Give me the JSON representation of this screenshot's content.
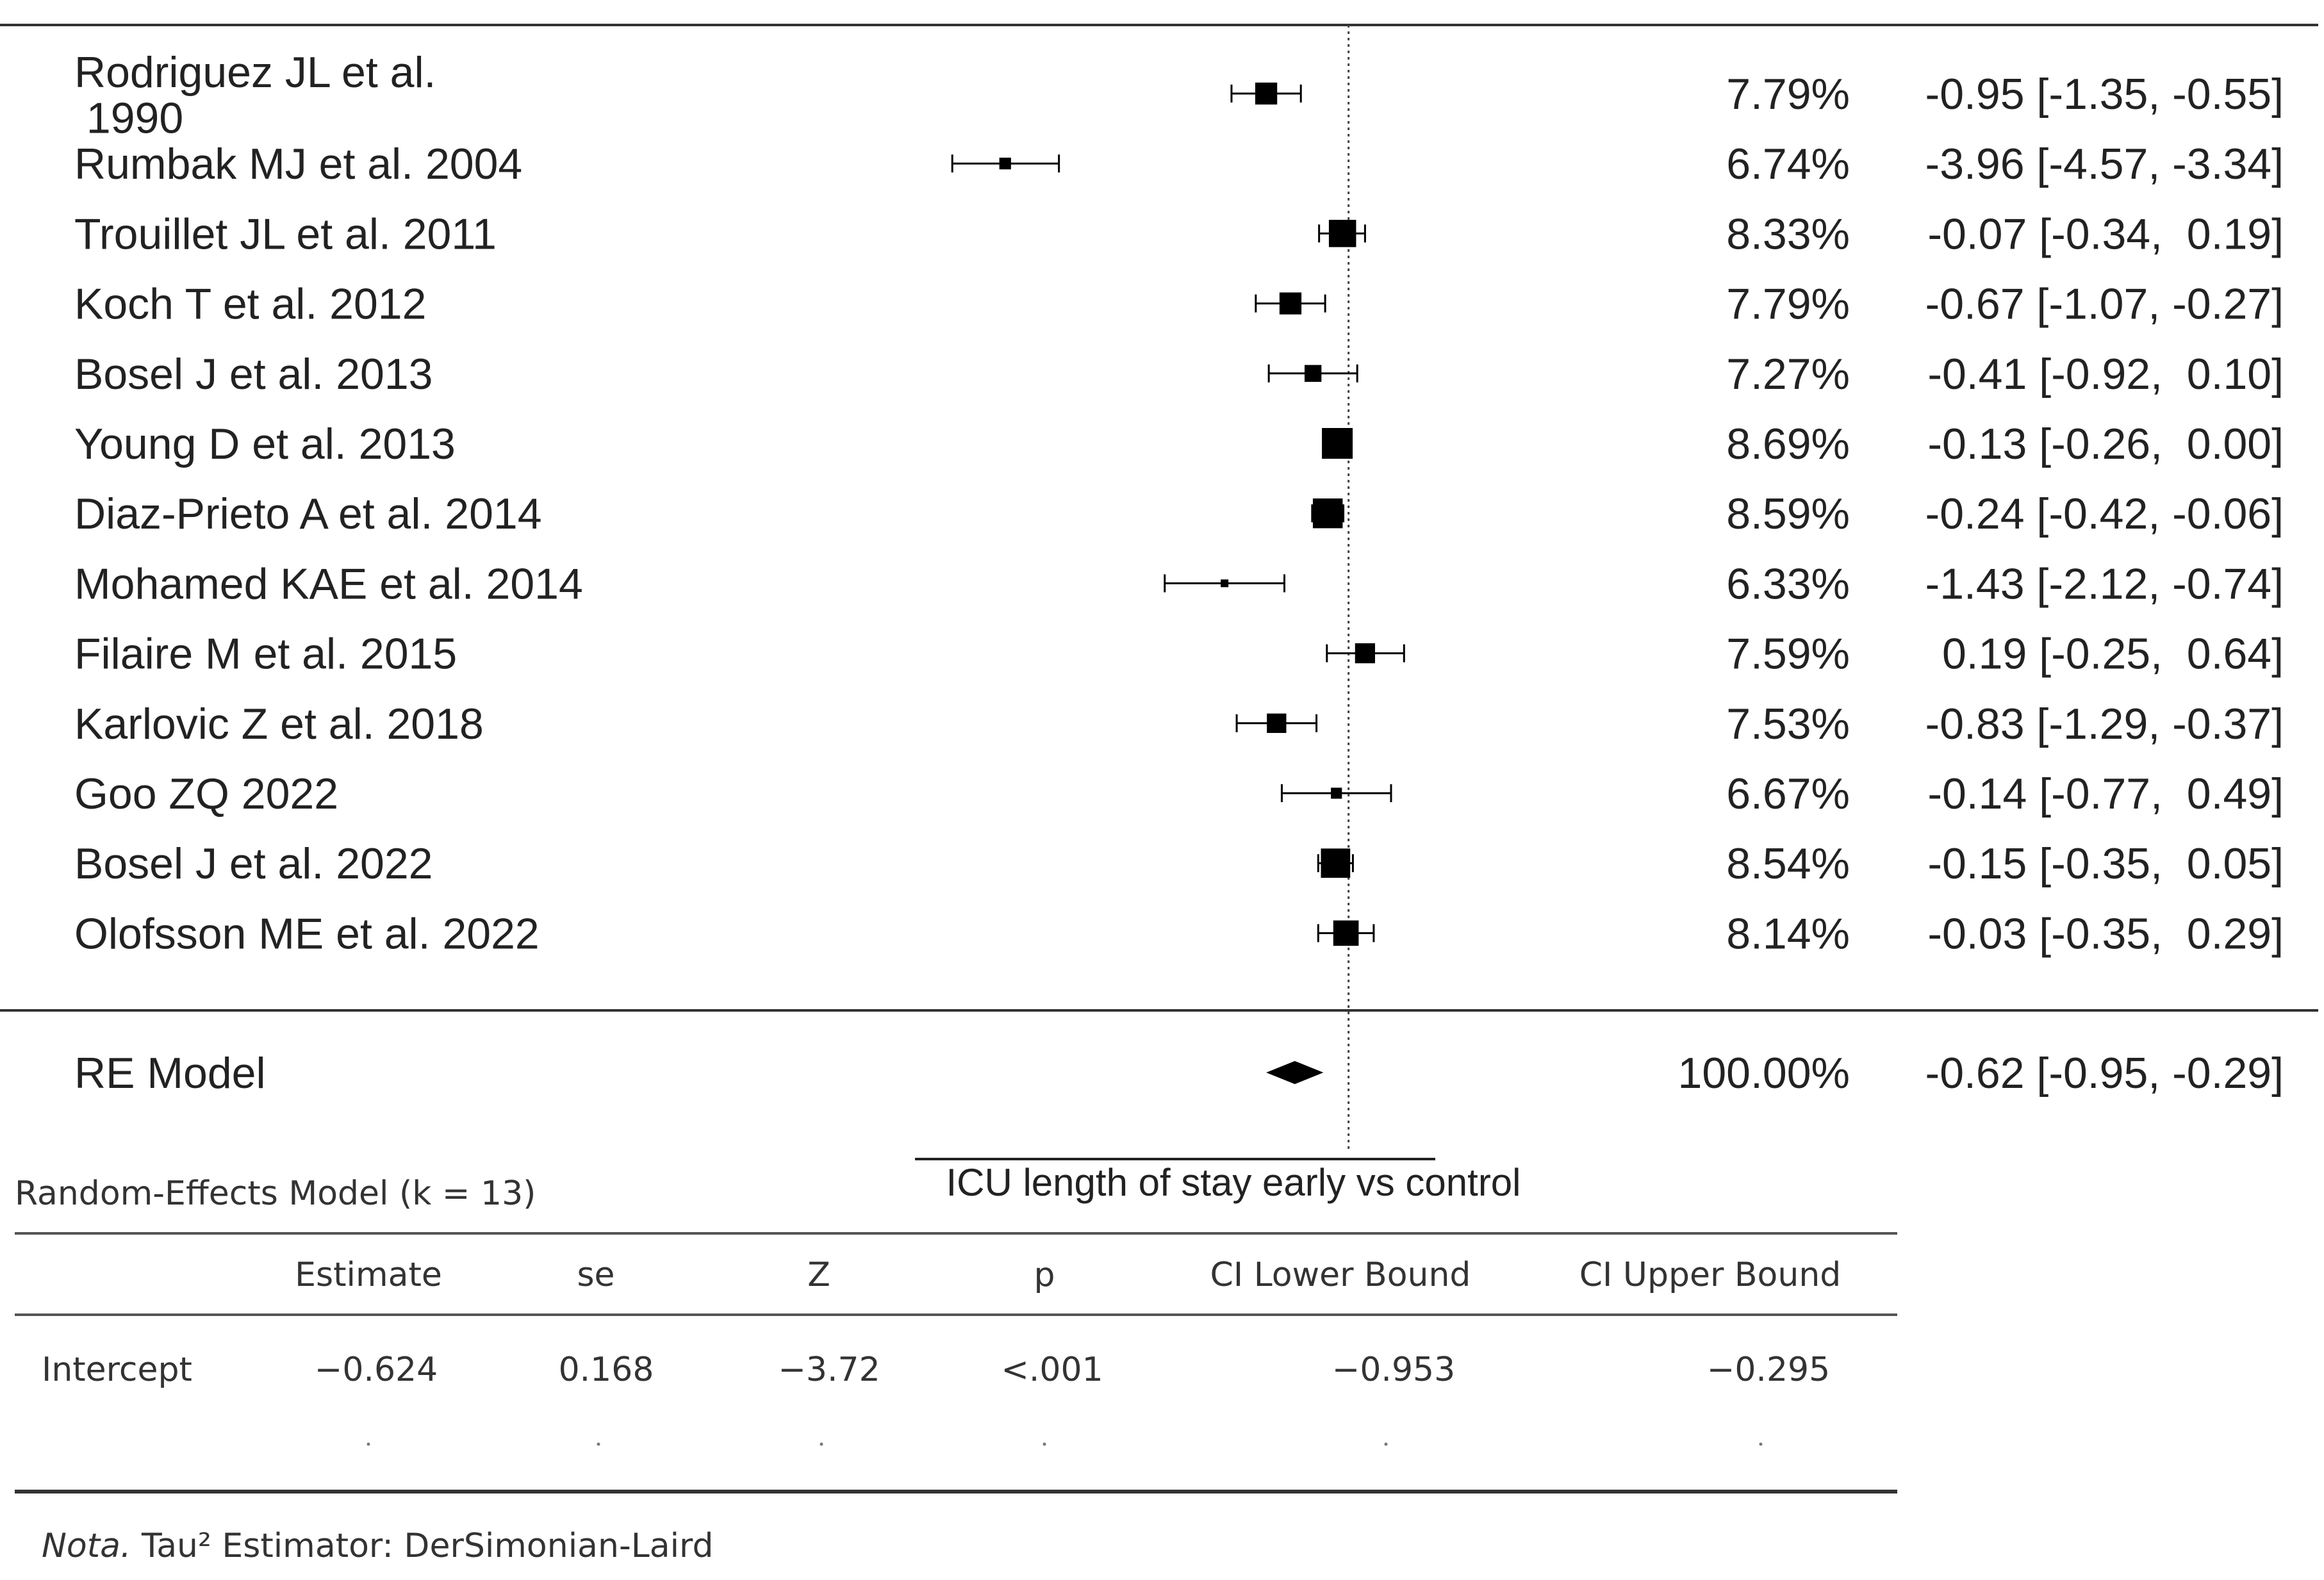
{
  "chart_data": {
    "type": "forest",
    "xlabel": "ICU length of stay early vs control",
    "xlim": [
      -5,
      1
    ],
    "reference_line": 0,
    "color": "#000000",
    "categories": [
      "Rodriguez JL et al.\n 1990",
      "Rumbak MJ et al. 2004",
      "Trouillet JL et al. 2011",
      "Koch T et al. 2012",
      "Bosel J et al. 2013",
      "Young D et al. 2013",
      "Diaz-Prieto A et al. 2014",
      "Mohamed KAE et al. 2014",
      "Filaire M et al. 2015",
      "Karlovic Z et al. 2018",
      "Goo ZQ 2022",
      "Bosel J et al. 2022",
      "Olofsson ME et al. 2022"
    ],
    "values": [
      -0.95,
      -3.96,
      -0.07,
      -0.67,
      -0.41,
      -0.13,
      -0.24,
      -1.43,
      0.19,
      -0.83,
      -0.14,
      -0.15,
      -0.03
    ],
    "ci_low": [
      -1.35,
      -4.57,
      -0.34,
      -1.07,
      -0.92,
      -0.26,
      -0.42,
      -2.12,
      -0.25,
      -1.29,
      -0.77,
      -0.35,
      -0.35
    ],
    "ci_high": [
      -0.55,
      -3.34,
      0.19,
      -0.27,
      0.1,
      0.0,
      -0.06,
      -0.74,
      0.64,
      -0.37,
      0.49,
      0.05,
      0.29
    ],
    "value_labels": [
      "-0.95 [-1.35, -0.55]",
      "-3.96 [-4.57, -3.34]",
      "-0.07 [-0.34,  0.19]",
      "-0.67 [-1.07, -0.27]",
      "-0.41 [-0.92,  0.10]",
      "-0.13 [-0.26,  0.00]",
      "-0.24 [-0.42, -0.06]",
      "-1.43 [-2.12, -0.74]",
      " 0.19 [-0.25,  0.64]",
      "-0.83 [-1.29, -0.37]",
      "-0.14 [-0.77,  0.49]",
      "-0.15 [-0.35,  0.05]",
      "-0.03 [-0.35,  0.29]"
    ],
    "weights": [
      7.79,
      6.74,
      8.33,
      7.79,
      7.27,
      8.69,
      8.59,
      6.33,
      7.59,
      7.53,
      6.67,
      8.54,
      8.14
    ],
    "weight_labels": [
      "7.79%",
      "6.74%",
      "8.33%",
      "7.79%",
      "7.27%",
      "8.69%",
      "8.59%",
      "6.33%",
      "7.59%",
      "7.53%",
      "6.67%",
      "8.54%",
      "8.14%"
    ],
    "pooled": {
      "name": "RE Model",
      "value": -0.62,
      "ci_low": -0.95,
      "ci_high": -0.29,
      "weight": 100.0,
      "weight_label": "100.00%",
      "value_label": "-0.62 [-0.95, -0.29]"
    }
  },
  "table": {
    "title": "Random-Effects Model (k = 13)",
    "columns": [
      "Estimate",
      "se",
      "Z",
      "p",
      "CI Lower Bound",
      "CI Upper Bound"
    ],
    "rows": [
      [
        "Intercept",
        "−0.624",
        "0.168",
        "−3.72",
        "<.001",
        "−0.953",
        "−0.295"
      ]
    ],
    "note_prefix": "Nota.",
    "note": "Tau² Estimator: DerSimonian-Laird"
  }
}
